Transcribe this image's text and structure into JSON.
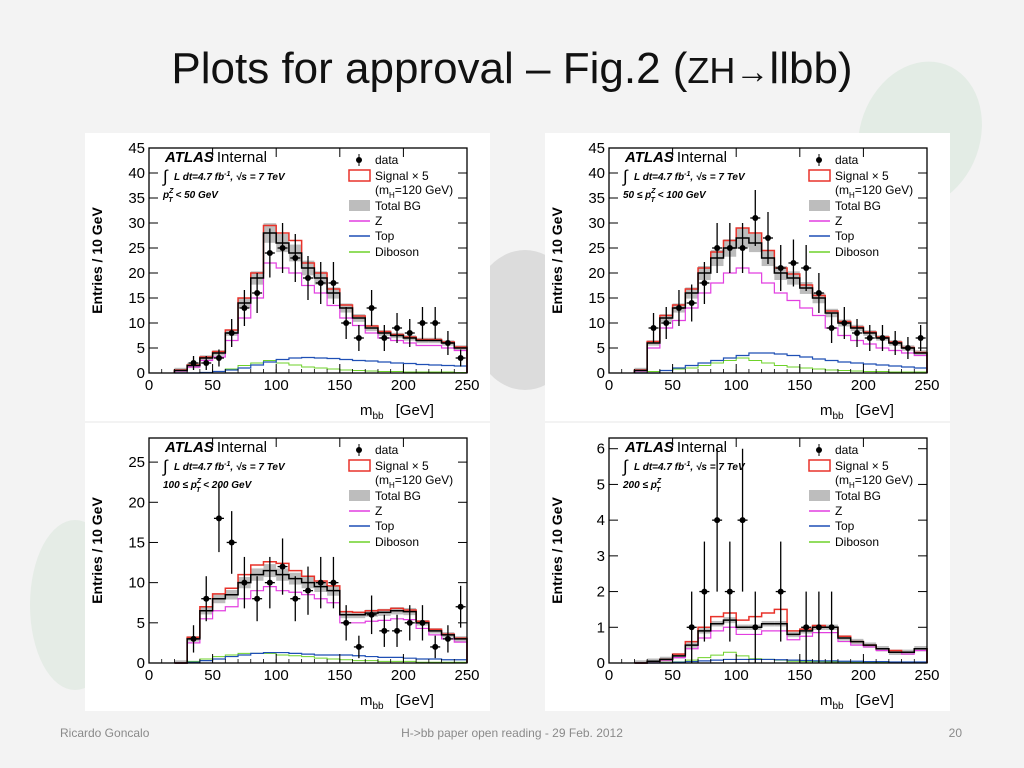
{
  "slide": {
    "title_main": "Plots for approval – Fig.2 (",
    "title_zh": "ZH",
    "title_arrow": "→",
    "title_end": "llbb)",
    "footer_left": "Ricardo Goncalo",
    "footer_center": "H->bb paper open reading - 29 Feb. 2012",
    "footer_right": "20"
  },
  "colors": {
    "signal": "#e8322a",
    "total_bg": "#bdbdbd",
    "z": "#e23ee0",
    "top": "#1f4fb5",
    "diboson": "#6ed22a",
    "data": "#000000"
  },
  "chart_data": [
    {
      "type": "histogram",
      "experiment": "ATLAS",
      "status": "Internal",
      "lumi_label": "L dt=4.7 fb",
      "lumi_exp": "-1",
      "sqrt_s": "s = 7 TeV",
      "region_pre": "p",
      "region_sup": "Z",
      "region_sub": "T",
      "region_post": " < 50 GeV",
      "xlabel": "m",
      "xlabel_sub": "bb",
      "xunit": "[GeV]",
      "ylabel": "Entries / 10 GeV",
      "xlim": [
        0,
        250
      ],
      "ylim": [
        0,
        45
      ],
      "xticks": [
        "0",
        "50",
        "100",
        "150",
        "200",
        "250"
      ],
      "yticks": [
        "0",
        "5",
        "10",
        "15",
        "20",
        "25",
        "30",
        "35",
        "40",
        "45"
      ],
      "legend": [
        "data",
        "Signal × 5",
        "(m",
        "H",
        "=120 GeV)",
        "Total BG",
        "Z",
        "Top",
        "Diboson"
      ],
      "bin_edges": [
        20,
        30,
        40,
        50,
        60,
        70,
        80,
        90,
        100,
        110,
        120,
        130,
        140,
        150,
        160,
        170,
        180,
        190,
        200,
        210,
        220,
        230,
        240,
        250
      ],
      "total_bg": [
        0.5,
        1.5,
        3,
        4,
        8,
        14,
        19,
        28,
        26,
        24,
        21,
        19,
        16,
        13,
        11,
        9,
        8,
        7.5,
        7,
        6.5,
        6.5,
        6,
        5
      ],
      "signal": [
        0.6,
        1.6,
        3.2,
        4.3,
        8.6,
        15,
        20,
        29.5,
        28,
        26.5,
        22,
        20,
        16.8,
        13.6,
        11.4,
        9.4,
        8.3,
        7.7,
        7.2,
        6.7,
        6.7,
        6.2,
        5.2
      ],
      "z": [
        0.4,
        1.2,
        2.5,
        3.2,
        6.5,
        11,
        15,
        22,
        21,
        20,
        17.5,
        16,
        13.5,
        11,
        9.5,
        8,
        7,
        6.5,
        6,
        5.5,
        5.5,
        5,
        4.5
      ],
      "top": [
        0,
        0,
        0.1,
        0.3,
        0.6,
        1,
        1.6,
        2.2,
        2.7,
        3,
        3.1,
        3,
        2.9,
        2.7,
        2.5,
        2.4,
        2.2,
        2,
        1.9,
        1.7,
        1.6,
        1.5,
        1.4
      ],
      "diboson": [
        0,
        0,
        0.1,
        0.3,
        0.8,
        1.5,
        2,
        2.5,
        2,
        1.6,
        1.2,
        1,
        0.8,
        0.6,
        0.5,
        0.4,
        0.3,
        0.3,
        0.2,
        0.2,
        0.2,
        0.2,
        0.1
      ],
      "data_x": [
        35,
        45,
        55,
        65,
        75,
        85,
        95,
        105,
        115,
        125,
        135,
        145,
        155,
        165,
        175,
        185,
        195,
        205,
        215,
        225,
        235,
        245
      ],
      "data_y": [
        2,
        2,
        3,
        8,
        13,
        16,
        24,
        25,
        23,
        19,
        18,
        18,
        10,
        7,
        13,
        7,
        9,
        8,
        10,
        10,
        6,
        3
      ],
      "data_err": [
        1.4,
        1.4,
        1.7,
        2.8,
        3.6,
        4,
        4.9,
        5,
        4.8,
        4.4,
        4.2,
        4.2,
        3.2,
        2.6,
        3.6,
        2.6,
        3,
        2.8,
        3.2,
        3.2,
        2.4,
        1.7
      ]
    },
    {
      "type": "histogram",
      "experiment": "ATLAS",
      "status": "Internal",
      "lumi_label": "L dt=4.7 fb",
      "lumi_exp": "-1",
      "sqrt_s": "s = 7 TeV",
      "region_pre": "50 ≤ p",
      "region_sup": "Z",
      "region_sub": "T",
      "region_post": " < 100 GeV",
      "xlabel": "m",
      "xlabel_sub": "bb",
      "xunit": "[GeV]",
      "ylabel": "Entries / 10 GeV",
      "xlim": [
        0,
        250
      ],
      "ylim": [
        0,
        45
      ],
      "xticks": [
        "0",
        "50",
        "100",
        "150",
        "200",
        "250"
      ],
      "yticks": [
        "0",
        "5",
        "10",
        "15",
        "20",
        "25",
        "30",
        "35",
        "40",
        "45"
      ],
      "legend": [
        "data",
        "Signal × 5",
        "(m",
        "H",
        "=120 GeV)",
        "Total BG",
        "Z",
        "Top",
        "Diboson"
      ],
      "bin_edges": [
        20,
        30,
        40,
        50,
        60,
        70,
        80,
        90,
        100,
        110,
        120,
        130,
        140,
        150,
        160,
        170,
        180,
        190,
        200,
        210,
        220,
        230,
        240,
        250
      ],
      "total_bg": [
        0.5,
        6,
        11,
        13,
        16,
        20,
        23,
        25,
        27,
        26,
        23,
        20,
        19,
        17,
        15,
        12,
        10,
        9,
        8,
        7,
        6,
        5,
        4
      ],
      "signal": [
        0.6,
        6.3,
        11.5,
        13.6,
        16.8,
        21,
        24.2,
        26.5,
        29,
        28,
        24.5,
        21,
        19.8,
        17.6,
        15.5,
        12.4,
        10.3,
        9.2,
        8.2,
        7.2,
        6.2,
        5.1,
        4.1
      ],
      "z": [
        0.4,
        5,
        9,
        10.5,
        13,
        16,
        18,
        20,
        21,
        20,
        18,
        16,
        14.5,
        13,
        11.5,
        9,
        7.5,
        6.5,
        5.8,
        5,
        4.5,
        4,
        3.5
      ],
      "top": [
        0,
        0,
        0.5,
        1,
        1.5,
        2,
        2.5,
        3,
        3.5,
        4,
        4,
        3.8,
        3.5,
        3.2,
        2.8,
        2.5,
        2.2,
        2,
        1.8,
        1.6,
        1.4,
        1.2,
        1
      ],
      "diboson": [
        0,
        0.3,
        0.5,
        0.8,
        1,
        1.5,
        2,
        2.5,
        3,
        2.5,
        2,
        1.5,
        1.2,
        1,
        0.8,
        0.6,
        0.5,
        0.4,
        0.3,
        0.3,
        0.2,
        0.2,
        0.2
      ],
      "data_x": [
        35,
        45,
        55,
        65,
        75,
        85,
        95,
        105,
        115,
        125,
        135,
        145,
        155,
        165,
        175,
        185,
        195,
        205,
        215,
        225,
        235,
        245
      ],
      "data_y": [
        9,
        10,
        13,
        14,
        18,
        25,
        25,
        25,
        31,
        27,
        21,
        22,
        21,
        16,
        9,
        10,
        8,
        7,
        7,
        6,
        5,
        7
      ],
      "data_err": [
        3,
        3.2,
        3.6,
        3.7,
        4.2,
        5,
        5,
        5,
        5.6,
        5.2,
        4.6,
        4.7,
        4.6,
        4,
        3,
        3.2,
        2.8,
        2.6,
        2.6,
        2.4,
        2.2,
        2.6
      ]
    },
    {
      "type": "histogram",
      "experiment": "ATLAS",
      "status": "Internal",
      "lumi_label": "L dt=4.7 fb",
      "lumi_exp": "-1",
      "sqrt_s": "s = 7 TeV",
      "region_pre": "100 ≤ p",
      "region_sup": "Z",
      "region_sub": "T",
      "region_post": " < 200 GeV",
      "xlabel": "m",
      "xlabel_sub": "bb",
      "xunit": "[GeV]",
      "ylabel": "Entries / 10 GeV",
      "xlim": [
        0,
        250
      ],
      "ylim": [
        0,
        28
      ],
      "xticks": [
        "0",
        "50",
        "100",
        "150",
        "200",
        "250"
      ],
      "yticks": [
        "0",
        "5",
        "10",
        "15",
        "20",
        "25"
      ],
      "legend": [
        "data",
        "Signal × 5",
        "(m",
        "H",
        "=120 GeV)",
        "Total BG",
        "Z",
        "Top",
        "Diboson"
      ],
      "bin_edges": [
        20,
        30,
        40,
        50,
        60,
        70,
        80,
        90,
        100,
        110,
        120,
        130,
        140,
        150,
        160,
        170,
        180,
        190,
        200,
        210,
        220,
        230,
        240,
        250
      ],
      "total_bg": [
        0,
        3,
        6.5,
        8,
        8.5,
        10,
        11,
        11.5,
        11,
        10.5,
        10,
        9.5,
        9,
        6,
        6,
        6.2,
        6.3,
        6.5,
        6.4,
        5,
        4,
        3.5,
        3
      ],
      "signal": [
        0,
        3.2,
        7,
        8.6,
        9.3,
        11,
        12.2,
        12.6,
        12.4,
        11.5,
        10.8,
        10.2,
        9.6,
        6.4,
        6.3,
        6.5,
        6.6,
        6.8,
        6.6,
        5.2,
        4.2,
        3.6,
        3.1
      ],
      "z": [
        0,
        2.5,
        5.5,
        6.5,
        7,
        8,
        9,
        9.5,
        9,
        8.8,
        8.5,
        8,
        7.5,
        5,
        5,
        5.2,
        5.3,
        5.5,
        5.4,
        4.3,
        3.5,
        3,
        2.6
      ],
      "top": [
        0,
        0.1,
        0.3,
        0.5,
        0.8,
        1,
        1.2,
        1.3,
        1.3,
        1.2,
        1.1,
        1,
        1,
        1,
        0.9,
        0.8,
        0.7,
        0.7,
        0.6,
        0.5,
        0.5,
        0.4,
        0.4
      ],
      "diboson": [
        0,
        0.2,
        0.5,
        0.8,
        1,
        1.2,
        1.2,
        1.2,
        1,
        0.9,
        0.8,
        0.6,
        0.5,
        0.4,
        0.3,
        0.3,
        0.2,
        0.2,
        0.2,
        0.1,
        0.1,
        0.1,
        0.1
      ],
      "data_x": [
        35,
        45,
        55,
        65,
        75,
        85,
        95,
        105,
        115,
        125,
        135,
        145,
        155,
        165,
        175,
        185,
        195,
        205,
        215,
        225,
        235,
        245
      ],
      "data_y": [
        3,
        8,
        18,
        15,
        10,
        8,
        10,
        12,
        8,
        9,
        10,
        10,
        5,
        2,
        6,
        4,
        4,
        5,
        5,
        2,
        3,
        7
      ],
      "data_err": [
        1.7,
        2.8,
        4.2,
        3.9,
        3.2,
        2.8,
        3.2,
        3.5,
        2.8,
        3,
        3.2,
        3.2,
        2.2,
        1.4,
        2.4,
        2,
        2,
        2.2,
        2.2,
        1.4,
        1.7,
        2.6
      ]
    },
    {
      "type": "histogram",
      "experiment": "ATLAS",
      "status": "Internal",
      "lumi_label": "L dt=4.7 fb",
      "lumi_exp": "-1",
      "sqrt_s": "s = 7 TeV",
      "region_pre": "200 ≤ p",
      "region_sup": "Z",
      "region_sub": "T",
      "region_post": "",
      "xlabel": "m",
      "xlabel_sub": "bb",
      "xunit": "[GeV]",
      "ylabel": "Entries / 10 GeV",
      "xlim": [
        0,
        250
      ],
      "ylim": [
        0,
        6.3
      ],
      "xticks": [
        "0",
        "50",
        "100",
        "150",
        "200",
        "250"
      ],
      "yticks": [
        "0",
        "1",
        "2",
        "3",
        "4",
        "5",
        "6"
      ],
      "legend": [
        "data",
        "Signal × 5",
        "(m",
        "H",
        "=120 GeV)",
        "Total BG",
        "Z",
        "Top",
        "Diboson"
      ],
      "bin_edges": [
        20,
        30,
        40,
        50,
        60,
        70,
        80,
        90,
        100,
        110,
        120,
        130,
        140,
        150,
        160,
        170,
        180,
        190,
        200,
        210,
        220,
        230,
        240,
        250
      ],
      "total_bg": [
        0,
        0.05,
        0.1,
        0.2,
        0.5,
        0.9,
        1.1,
        1.2,
        1,
        1,
        1.1,
        1.1,
        0.8,
        0.9,
        1,
        1,
        0.7,
        0.6,
        0.5,
        0.4,
        0.3,
        0.3,
        0.4
      ],
      "signal": [
        0,
        0.05,
        0.1,
        0.25,
        0.6,
        1,
        1.3,
        1.4,
        1.2,
        1.3,
        1.4,
        1.5,
        0.9,
        0.95,
        1.05,
        1,
        0.75,
        0.6,
        0.5,
        0.4,
        0.35,
        0.3,
        0.4
      ],
      "z": [
        0,
        0.04,
        0.08,
        0.15,
        0.4,
        0.7,
        0.9,
        1,
        0.8,
        0.8,
        0.9,
        0.9,
        0.65,
        0.75,
        0.85,
        0.85,
        0.6,
        0.5,
        0.45,
        0.35,
        0.3,
        0.25,
        0.35
      ],
      "top": [
        0,
        0,
        0,
        0.02,
        0.04,
        0.06,
        0.08,
        0.1,
        0.1,
        0.1,
        0.1,
        0.09,
        0.08,
        0.07,
        0.06,
        0.06,
        0.05,
        0.05,
        0.04,
        0.04,
        0.03,
        0.03,
        0.03
      ],
      "diboson": [
        0,
        0,
        0.01,
        0.03,
        0.08,
        0.15,
        0.22,
        0.3,
        0.2,
        0.12,
        0.1,
        0.08,
        0.05,
        0.04,
        0.04,
        0.03,
        0.03,
        0.02,
        0.02,
        0.02,
        0.01,
        0.01,
        0.01
      ],
      "data_x": [
        65,
        75,
        85,
        95,
        105,
        115,
        135,
        155,
        165,
        175
      ],
      "data_y": [
        1,
        2,
        4,
        2,
        4,
        1,
        2,
        1,
        1,
        1
      ],
      "data_err": [
        1,
        1.4,
        2,
        1.4,
        2,
        1,
        1.4,
        1,
        1,
        1
      ]
    }
  ]
}
